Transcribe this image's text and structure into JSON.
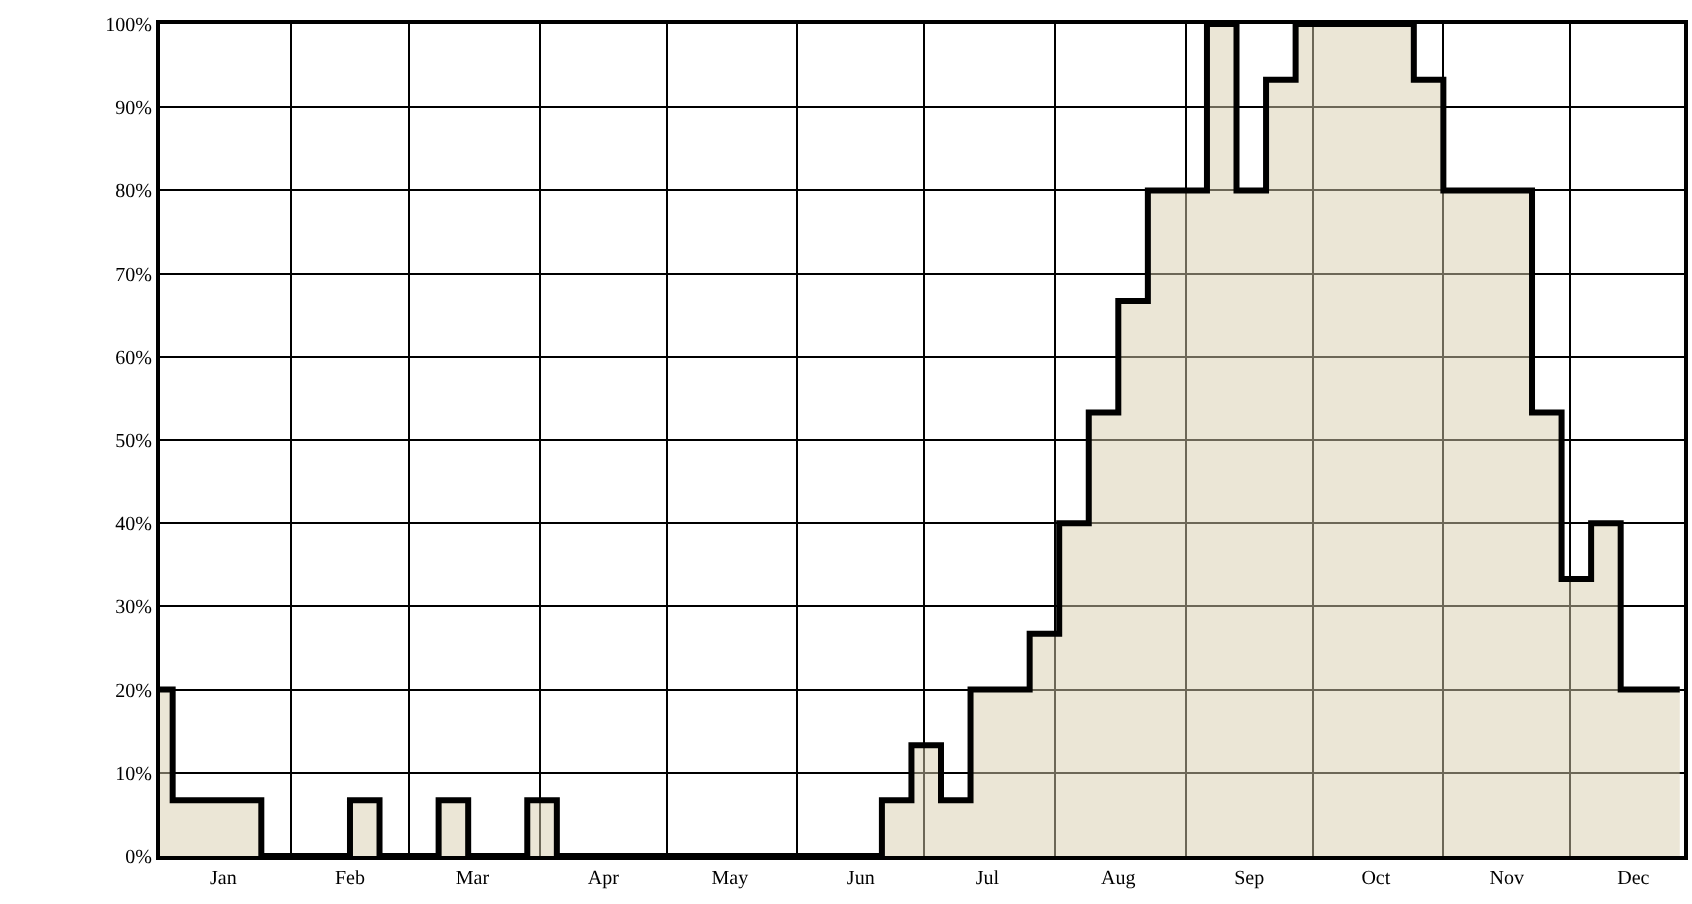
{
  "chart_data": {
    "type": "area",
    "x": [
      "--01-01",
      "--01-04",
      "--01-11",
      "--01-18",
      "--01-25",
      "--02-01",
      "--02-08",
      "--02-15",
      "--02-22",
      "--03-01",
      "--03-08",
      "--03-15",
      "--03-22",
      "--03-29",
      "--04-05",
      "--04-12",
      "--04-19",
      "--04-26",
      "--05-03",
      "--05-10",
      "--05-17",
      "--05-24",
      "--05-31",
      "--06-07",
      "--06-14",
      "--06-21",
      "--06-28",
      "--07-05",
      "--07-12",
      "--07-19",
      "--07-26",
      "--08-02",
      "--08-09",
      "--08-16",
      "--08-23",
      "--08-30",
      "--09-06",
      "--09-13",
      "--09-20",
      "--09-27",
      "--10-04",
      "--10-11",
      "--10-18",
      "--10-25",
      "--11-01",
      "--11-08",
      "--11-15",
      "--11-22",
      "--11-29",
      "--12-06",
      "--12-13",
      "--12-20",
      "--12-27"
    ],
    "series": [
      {
        "color": "#ebe6d6",
        "values": [
          20,
          6.7,
          6.7,
          6.7,
          0,
          0,
          0,
          6.7,
          0,
          0,
          6.7,
          0,
          0,
          6.7,
          0,
          0,
          0,
          0,
          0,
          0,
          0,
          0,
          0,
          0,
          0,
          6.7,
          13.3,
          6.7,
          20,
          20,
          26.7,
          40,
          53.3,
          66.7,
          80,
          80,
          100,
          80,
          93.3,
          100,
          100,
          100,
          100,
          93.3,
          80,
          80,
          80,
          53.3,
          33.3,
          40,
          20,
          20,
          20
        ]
      }
    ],
    "xlim": [
      "--01-01",
      "--12-28"
    ],
    "xticks": [
      {
        "value": "--01-01",
        "label": null
      },
      {
        "value": "--01-16",
        "label": "Jan"
      },
      {
        "value": "--02-01",
        "label": null
      },
      {
        "value": "--02-15",
        "label": "Feb"
      },
      {
        "value": "--03-01",
        "label": null
      },
      {
        "value": "--03-16",
        "label": "Mar"
      },
      {
        "value": "--04-01",
        "label": null
      },
      {
        "value": "--04-16",
        "label": "Apr"
      },
      {
        "value": "--05-01",
        "label": null
      },
      {
        "value": "--05-16",
        "label": "May"
      },
      {
        "value": "--06-01",
        "label": null
      },
      {
        "value": "--06-16",
        "label": "Jun"
      },
      {
        "value": "--07-01",
        "label": null
      },
      {
        "value": "--07-16",
        "label": "Jul"
      },
      {
        "value": "--08-01",
        "label": null
      },
      {
        "value": "--08-16",
        "label": "Aug"
      },
      {
        "value": "--09-01",
        "label": null
      },
      {
        "value": "--09-16",
        "label": "Sep"
      },
      {
        "value": "--10-01",
        "label": null
      },
      {
        "value": "--10-16",
        "label": "Oct"
      },
      {
        "value": "--11-01",
        "label": null
      },
      {
        "value": "--11-16",
        "label": "Nov"
      },
      {
        "value": "--12-01",
        "label": null
      },
      {
        "value": "--12-16",
        "label": "Dec"
      }
    ],
    "ylim": [
      0,
      100
    ],
    "yticks": [
      {
        "value": 0,
        "label": "0%"
      },
      {
        "value": 10,
        "label": "10%"
      },
      {
        "value": 20,
        "label": "20%"
      },
      {
        "value": 30,
        "label": "30%"
      },
      {
        "value": 40,
        "label": "40%"
      },
      {
        "value": 50,
        "label": "50%"
      },
      {
        "value": 60,
        "label": "60%"
      },
      {
        "value": 70,
        "label": "70%"
      },
      {
        "value": 80,
        "label": "80%"
      },
      {
        "value": 90,
        "label": "90%"
      },
      {
        "value": 100,
        "label": "100%"
      }
    ],
    "grid": true
  }
}
